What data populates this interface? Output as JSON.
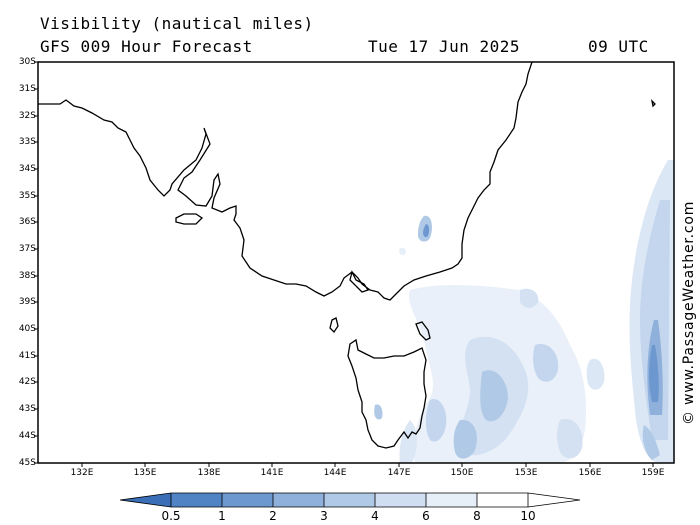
{
  "header": {
    "title": "Visibility (nautical miles)",
    "model": "GFS 009 Hour Forecast",
    "date": "Tue 17 Jun 2025",
    "time": "09 UTC"
  },
  "map": {
    "lat_labels": [
      "30S",
      "31S",
      "32S",
      "33S",
      "34S",
      "35S",
      "36S",
      "37S",
      "38S",
      "39S",
      "40S",
      "41S",
      "42S",
      "43S",
      "44S",
      "45S"
    ],
    "lon_labels": [
      "132E",
      "135E",
      "138E",
      "141E",
      "144E",
      "147E",
      "150E",
      "153E",
      "156E",
      "159E"
    ]
  },
  "colorbar": {
    "labels": [
      "0.5",
      "1",
      "2",
      "3",
      "4",
      "6",
      "8",
      "10"
    ],
    "colors": [
      "#3a6fb8",
      "#4f83c4",
      "#6d98cf",
      "#8eb0da",
      "#b0c9e6",
      "#cfdef1",
      "#e6eef8",
      "#ffffff"
    ]
  },
  "credit": "© www.PassageWeather.com"
}
